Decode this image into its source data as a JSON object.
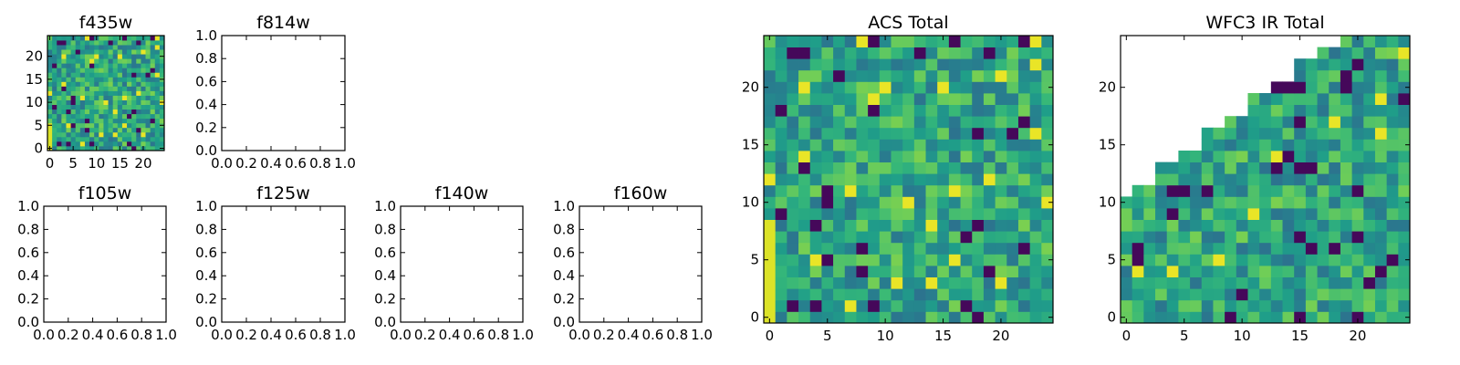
{
  "chart_data": [
    {
      "id": "f435w",
      "type": "heatmap",
      "title": "f435w",
      "xlim": [
        -0.5,
        24.5
      ],
      "ylim": [
        -0.5,
        24.5
      ],
      "xticks": [
        0,
        5,
        10,
        15,
        20
      ],
      "yticks": [
        0,
        5,
        10,
        15,
        20
      ],
      "grid_size": [
        25,
        25
      ],
      "colormap": "viridis",
      "seed": 11,
      "mask": "none"
    },
    {
      "id": "f814w",
      "type": "empty",
      "title": "f814w",
      "xlim": [
        0,
        1
      ],
      "ylim": [
        0,
        1
      ],
      "xticks": [
        "0.0",
        "0.2",
        "0.4",
        "0.6",
        "0.8",
        "1.0"
      ],
      "yticks": [
        "0.0",
        "0.2",
        "0.4",
        "0.6",
        "0.8",
        "1.0"
      ]
    },
    {
      "id": "f105w",
      "type": "empty",
      "title": "f105w",
      "xlim": [
        0,
        1
      ],
      "ylim": [
        0,
        1
      ],
      "xticks": [
        "0.0",
        "0.2",
        "0.4",
        "0.6",
        "0.8",
        "1.0"
      ],
      "yticks": [
        "0.0",
        "0.2",
        "0.4",
        "0.6",
        "0.8",
        "1.0"
      ]
    },
    {
      "id": "f125w",
      "type": "empty",
      "title": "f125w",
      "xlim": [
        0,
        1
      ],
      "ylim": [
        0,
        1
      ],
      "xticks": [
        "0.0",
        "0.2",
        "0.4",
        "0.6",
        "0.8",
        "1.0"
      ],
      "yticks": [
        "0.0",
        "0.2",
        "0.4",
        "0.6",
        "0.8",
        "1.0"
      ]
    },
    {
      "id": "f140w",
      "type": "empty",
      "title": "f140w",
      "xlim": [
        0,
        1
      ],
      "ylim": [
        0,
        1
      ],
      "xticks": [
        "0.0",
        "0.2",
        "0.4",
        "0.6",
        "0.8",
        "1.0"
      ],
      "yticks": [
        "0.0",
        "0.2",
        "0.4",
        "0.6",
        "0.8",
        "1.0"
      ]
    },
    {
      "id": "f160w",
      "type": "empty",
      "title": "f160w",
      "xlim": [
        0,
        1
      ],
      "ylim": [
        0,
        1
      ],
      "xticks": [
        "0.0",
        "0.2",
        "0.4",
        "0.6",
        "0.8",
        "1.0"
      ],
      "yticks": [
        "0.0",
        "0.2",
        "0.4",
        "0.6",
        "0.8",
        "1.0"
      ]
    },
    {
      "id": "acs-total",
      "type": "heatmap",
      "title": "ACS Total",
      "xlim": [
        -0.5,
        24.5
      ],
      "ylim": [
        -0.5,
        24.5
      ],
      "xticks": [
        0,
        5,
        10,
        15,
        20
      ],
      "yticks": [
        0,
        5,
        10,
        15,
        20
      ],
      "grid_size": [
        25,
        25
      ],
      "colormap": "viridis",
      "seed": 11,
      "mask": "none"
    },
    {
      "id": "wfc3-ir-total",
      "type": "heatmap",
      "title": "WFC3 IR Total",
      "xlim": [
        -0.5,
        24.5
      ],
      "ylim": [
        -0.5,
        24.5
      ],
      "xticks": [
        0,
        5,
        10,
        15,
        20
      ],
      "yticks": [
        0,
        5,
        10,
        15,
        20
      ],
      "grid_size": [
        25,
        25
      ],
      "colormap": "viridis",
      "seed": 29,
      "mask": "upper-left"
    }
  ]
}
